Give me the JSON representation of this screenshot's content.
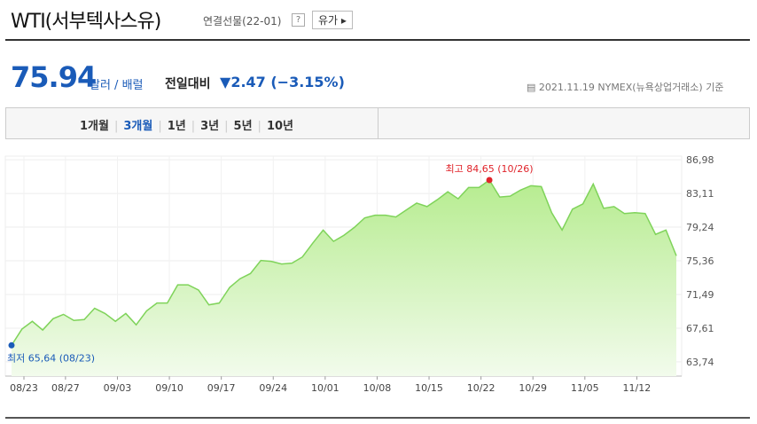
{
  "header": {
    "title": "WTI(서부텍사스유)",
    "subtitle": "연결선물(22-01)",
    "help": "?",
    "button": "유가"
  },
  "quote": {
    "price": 75.94,
    "unit": "달러 / 배럴",
    "compare_label": "전일대비",
    "change": "2.47 (−3.15%)",
    "date": "2021.11.19 NYMEX(뉴욕상업거래소) 기준"
  },
  "tabs": [
    "1개월",
    "3개월",
    "1년",
    "3년",
    "5년",
    "10년"
  ],
  "selected_tab": "3개월",
  "chart_data": {
    "type": "area",
    "categories": [
      "08/23",
      null,
      null,
      null,
      "08/27",
      null,
      null,
      null,
      null,
      "09/03",
      null,
      null,
      null,
      null,
      "09/10",
      null,
      null,
      null,
      null,
      "09/17",
      null,
      null,
      null,
      null,
      "09/24",
      null,
      null,
      null,
      null,
      "10/01",
      null,
      null,
      null,
      null,
      "10/08",
      null,
      null,
      null,
      null,
      "10/15",
      null,
      null,
      null,
      null,
      "10/22",
      null,
      null,
      null,
      null,
      "10/29",
      null,
      null,
      null,
      null,
      "11/05",
      null,
      null,
      null,
      null,
      "11/12",
      null,
      null,
      null,
      null,
      null
    ],
    "series": [
      {
        "color": "#7fd35a",
        "values": [
          65.64,
          67.5,
          68.4,
          67.4,
          68.7,
          69.2,
          68.5,
          68.6,
          69.9,
          69.3,
          68.4,
          69.3,
          68.0,
          69.6,
          70.5,
          70.5,
          72.6,
          72.6,
          72.0,
          70.3,
          70.5,
          72.3,
          73.3,
          73.9,
          75.4,
          75.3,
          75.0,
          75.1,
          75.8,
          77.4,
          78.9,
          77.6,
          78.3,
          79.2,
          80.3,
          80.6,
          80.6,
          80.4,
          81.2,
          82.0,
          81.6,
          82.4,
          83.3,
          82.5,
          83.8,
          83.8,
          84.65,
          82.7,
          82.8,
          83.5,
          84.0,
          83.9,
          80.9,
          78.9,
          81.3,
          81.9,
          84.2,
          81.4,
          81.6,
          80.8,
          80.9,
          80.8,
          78.4,
          78.9,
          75.94
        ]
      }
    ],
    "high_label": "최고 84,65 (10/26)",
    "low_label": "최저 65,64 (08/23)",
    "ylim": [
      62.1,
      87.2
    ],
    "yticks": [
      {
        "value": 63.74,
        "label": "63,74"
      },
      {
        "value": 67.61,
        "label": "67,61"
      },
      {
        "value": 71.49,
        "label": "71,49"
      },
      {
        "value": 75.36,
        "label": "75,36"
      },
      {
        "value": 79.24,
        "label": "79,24"
      },
      {
        "value": 83.11,
        "label": "83,11"
      },
      {
        "value": 86.98,
        "label": "86,98"
      }
    ],
    "grid": true,
    "high_color": "#e0242b",
    "low_color": "#1a5bb8"
  }
}
